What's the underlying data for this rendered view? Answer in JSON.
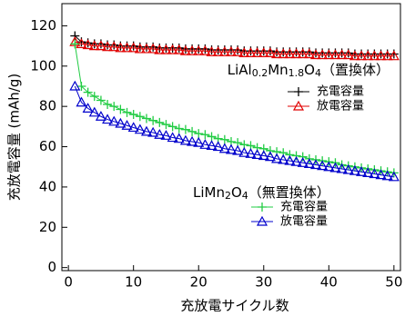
{
  "chart_data": {
    "type": "line",
    "x_label": "充放電サイクル数",
    "y_label": "充放電容量 (mAh/g)",
    "x": [
      1,
      2,
      3,
      4,
      5,
      6,
      7,
      8,
      9,
      10,
      11,
      12,
      13,
      14,
      15,
      16,
      17,
      18,
      19,
      20,
      21,
      22,
      23,
      24,
      25,
      26,
      27,
      28,
      29,
      30,
      31,
      32,
      33,
      34,
      35,
      36,
      37,
      38,
      39,
      40,
      41,
      42,
      43,
      44,
      45,
      46,
      47,
      48,
      49,
      50
    ],
    "series": [
      {
        "name": "充電容量",
        "color": "#000000",
        "marker": "plus",
        "values": [
          115,
          112,
          111.5,
          111,
          111,
          110.5,
          110.5,
          110,
          110,
          110,
          109.5,
          109.5,
          109.5,
          109,
          109,
          109,
          109,
          108.5,
          108.5,
          108.5,
          108.5,
          108,
          108,
          108,
          108,
          108,
          107.5,
          107.5,
          107.5,
          107.5,
          107.5,
          107,
          107,
          107,
          107,
          107,
          107,
          106.5,
          106.5,
          106.5,
          106.5,
          106.5,
          106.5,
          106,
          106,
          106,
          106,
          106,
          106,
          106
        ]
      },
      {
        "name": "放電容量",
        "color": "#e00000",
        "marker": "triangle",
        "values": [
          112,
          111,
          110.5,
          110,
          110,
          109.5,
          109.5,
          109,
          109,
          109,
          108.5,
          108.5,
          108.5,
          108,
          108,
          108,
          108,
          107.5,
          107.5,
          107.5,
          107.5,
          107,
          107,
          107,
          107,
          107,
          106.5,
          106.5,
          106.5,
          106.5,
          106.5,
          106,
          106,
          106,
          106,
          106,
          106,
          105.5,
          105.5,
          105.5,
          105.5,
          105.5,
          105.5,
          105,
          105,
          105,
          105,
          105,
          105,
          105
        ]
      },
      {
        "name": "充電容量",
        "color": "#22cc44",
        "marker": "plus",
        "values": [
          111,
          90,
          87,
          85,
          83,
          81,
          80,
          78.5,
          77,
          76,
          75,
          74,
          73,
          72,
          71,
          70,
          69,
          68.5,
          67.5,
          66.5,
          66,
          65,
          64,
          63.5,
          62.5,
          62,
          61,
          60.5,
          59.5,
          59,
          58,
          57.5,
          57,
          56,
          55.5,
          55,
          54,
          53.5,
          53,
          52.5,
          52,
          51,
          50.5,
          50,
          49.5,
          49,
          48.5,
          48,
          47.5,
          47
        ]
      },
      {
        "name": "放電容量",
        "color": "#0000cc",
        "marker": "triangle",
        "values": [
          90,
          82,
          79,
          77,
          75,
          73.5,
          72.5,
          71.5,
          70.5,
          69.5,
          68.5,
          67.5,
          67,
          66,
          65.5,
          64.5,
          64,
          63,
          62.5,
          62,
          61,
          60.5,
          60,
          59,
          58.5,
          58,
          57,
          56.5,
          56,
          55.5,
          55,
          54,
          53.5,
          53,
          52.5,
          52,
          51.5,
          51,
          50.5,
          50,
          49.5,
          49,
          48.5,
          48,
          47.5,
          47,
          46.5,
          46,
          45.5,
          45
        ]
      }
    ],
    "annotations": [
      {
        "parts": [
          "LiAl",
          "0.2",
          "Mn",
          "1.8",
          "O",
          "4",
          "（置換体）"
        ]
      },
      {
        "parts": [
          "LiMn",
          "2",
          "O",
          "4",
          "（無置換体）"
        ]
      }
    ],
    "xlim": [
      -1,
      51
    ],
    "xticks": [
      0,
      10,
      20,
      30,
      40,
      50
    ],
    "ylim": [
      -1.5,
      131
    ],
    "yticks": [
      0,
      20,
      40,
      60,
      80,
      100,
      120
    ]
  }
}
